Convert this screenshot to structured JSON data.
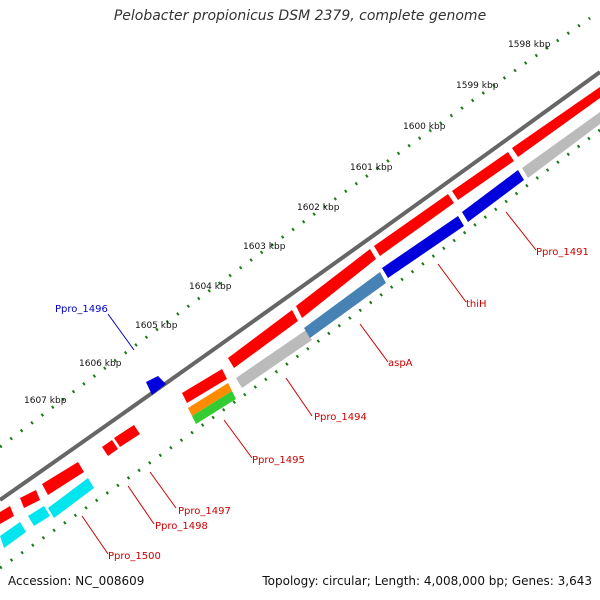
{
  "title": "Pelobacter propionicus DSM 2379, complete genome",
  "footer": {
    "accession": "Accession: NC_008609",
    "summary": "Topology: circular; Length: 4,008,000 bp; Genes: 3,643"
  },
  "ruler_labels": [
    "1598 kbp",
    "1599 kbp",
    "1600 kbp",
    "1601 kbp",
    "1602 kbp",
    "1603 kbp",
    "1604 kbp",
    "1605 kbp",
    "1606 kbp",
    "1607 kbp"
  ],
  "colors": {
    "forward_cds": "#ff0000",
    "reverse_cds": "#bbbbbb",
    "blue_gene": "#0000dd",
    "steel_gene": "#4682b4",
    "cyan_gene": "#00e5ee",
    "orange_gene": "#ff8c00",
    "green_gene": "#33cc33",
    "backbone": "#666666",
    "tick": "#1a7a1a"
  },
  "gene_labels": [
    {
      "text": "Ppro_1491",
      "color": "#cc0000"
    },
    {
      "text": "thiH",
      "color": "#cc0000"
    },
    {
      "text": "aspA",
      "color": "#cc0000"
    },
    {
      "text": "Ppro_1494",
      "color": "#cc0000"
    },
    {
      "text": "Ppro_1495",
      "color": "#cc0000"
    },
    {
      "text": "Ppro_1496",
      "color": "#0000cc"
    },
    {
      "text": "Ppro_1497",
      "color": "#cc0000"
    },
    {
      "text": "Ppro_1498",
      "color": "#cc0000"
    },
    {
      "text": "Ppro_1500",
      "color": "#cc0000"
    }
  ]
}
